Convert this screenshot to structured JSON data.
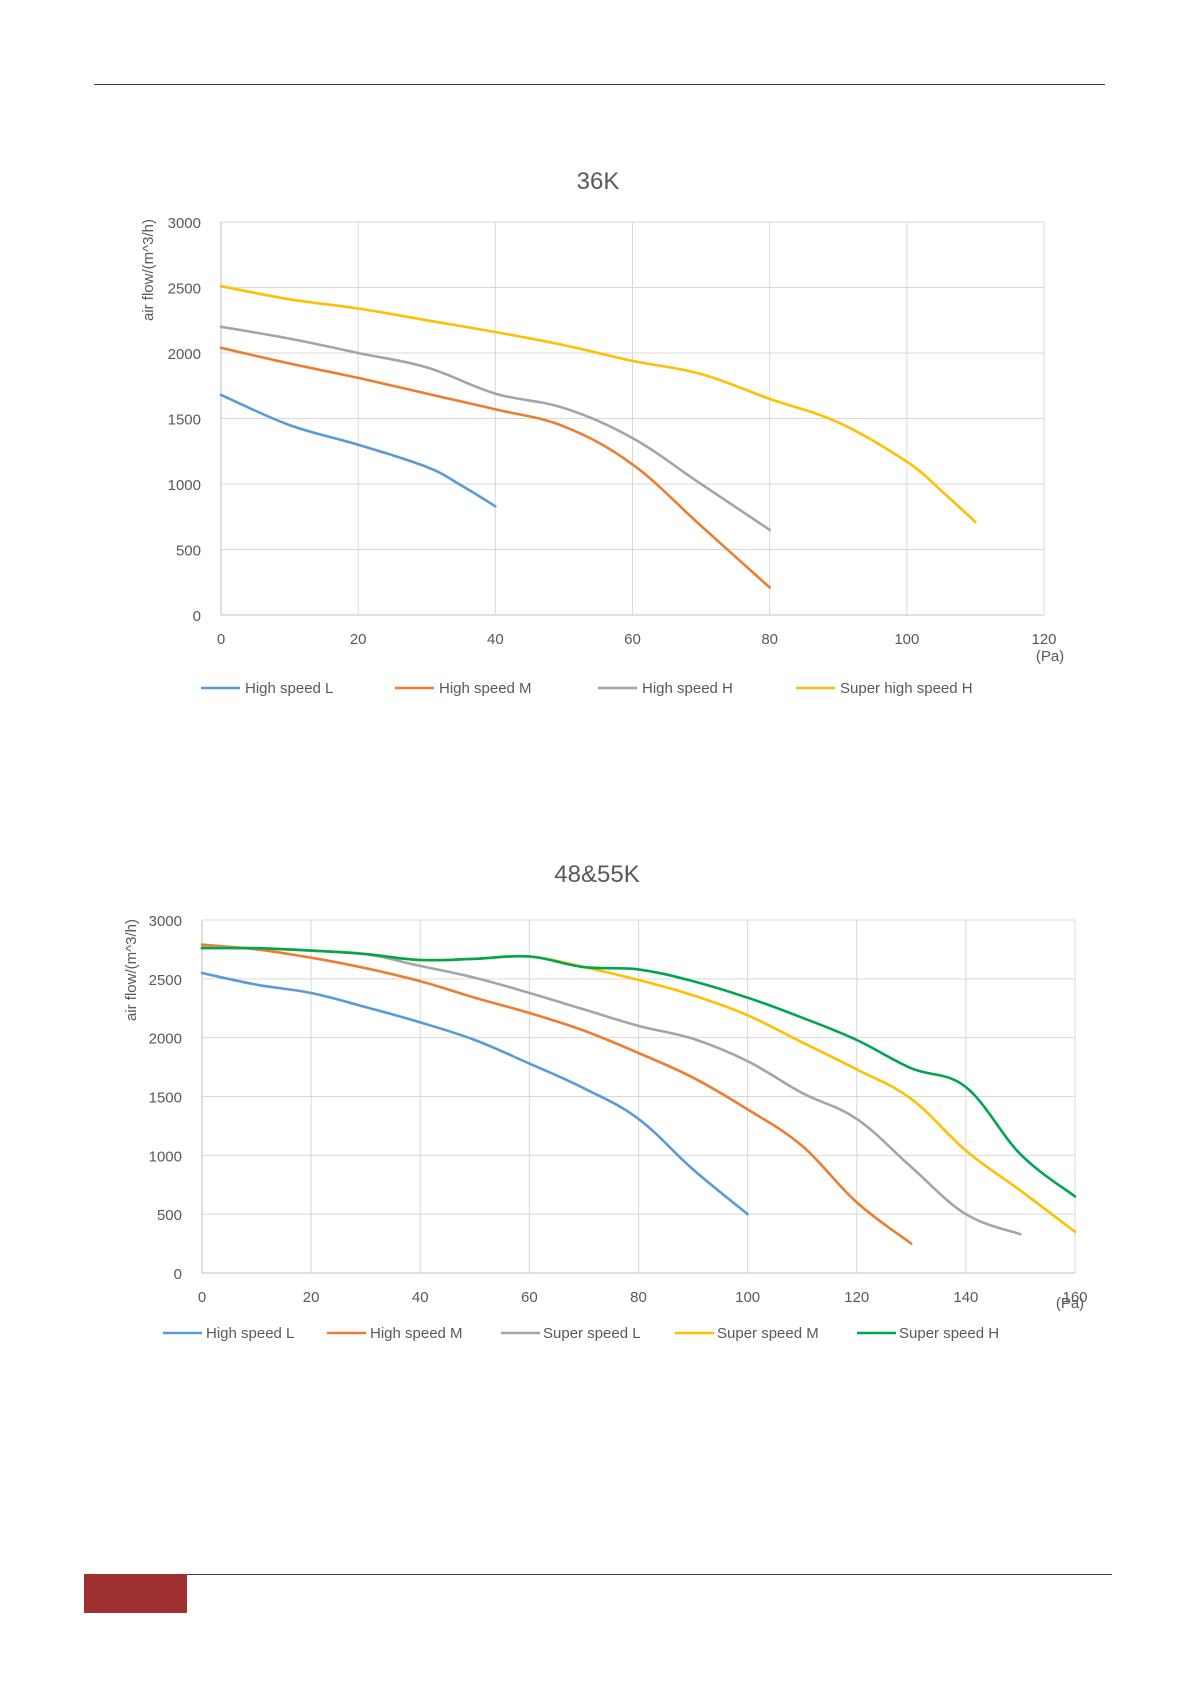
{
  "page": {
    "footer_color": "#9E3030"
  },
  "chart_data": [
    {
      "type": "line",
      "title": "36K",
      "ylabel": "air flow/(m^3/h)",
      "xlabel": "",
      "x_unit": "(Pa)",
      "xlim": [
        0,
        120
      ],
      "ylim": [
        0,
        3000
      ],
      "x_ticks": [
        0,
        20,
        40,
        60,
        80,
        100,
        120
      ],
      "y_ticks": [
        0,
        500,
        1000,
        1500,
        2000,
        2500,
        3000
      ],
      "grid": true,
      "legend_position": "bottom",
      "series": [
        {
          "name": "High speed L",
          "color": "#5B9BD5",
          "points": [
            [
              0,
              1680
            ],
            [
              10,
              1450
            ],
            [
              20,
              1300
            ],
            [
              30,
              1130
            ],
            [
              35,
              990
            ],
            [
              40,
              830
            ]
          ]
        },
        {
          "name": "High speed M",
          "color": "#ED7D31",
          "points": [
            [
              0,
              2040
            ],
            [
              10,
              1920
            ],
            [
              20,
              1810
            ],
            [
              30,
              1690
            ],
            [
              40,
              1570
            ],
            [
              50,
              1440
            ],
            [
              60,
              1150
            ],
            [
              70,
              680
            ],
            [
              80,
              210
            ]
          ]
        },
        {
          "name": "High speed H",
          "color": "#A5A5A5",
          "points": [
            [
              0,
              2200
            ],
            [
              10,
              2110
            ],
            [
              20,
              2000
            ],
            [
              30,
              1890
            ],
            [
              40,
              1690
            ],
            [
              50,
              1580
            ],
            [
              60,
              1350
            ],
            [
              70,
              1000
            ],
            [
              80,
              650
            ]
          ]
        },
        {
          "name": "Super high speed H",
          "color": "#FFC000",
          "points": [
            [
              0,
              2510
            ],
            [
              10,
              2410
            ],
            [
              20,
              2340
            ],
            [
              30,
              2250
            ],
            [
              40,
              2160
            ],
            [
              50,
              2060
            ],
            [
              60,
              1940
            ],
            [
              70,
              1840
            ],
            [
              80,
              1650
            ],
            [
              90,
              1470
            ],
            [
              100,
              1170
            ],
            [
              105,
              950
            ],
            [
              110,
              710
            ]
          ]
        }
      ]
    },
    {
      "type": "line",
      "title": "48&55K",
      "ylabel": "air flow/(m^3/h)",
      "xlabel": "",
      "x_unit": "(Pa)",
      "xlim": [
        0,
        160
      ],
      "ylim": [
        0,
        3000
      ],
      "x_ticks": [
        0,
        20,
        40,
        60,
        80,
        100,
        120,
        140,
        160
      ],
      "y_ticks": [
        0,
        500,
        1000,
        1500,
        2000,
        2500,
        3000
      ],
      "grid": true,
      "legend_position": "bottom",
      "series": [
        {
          "name": "High speed L",
          "color": "#5B9BD5",
          "points": [
            [
              0,
              2550
            ],
            [
              10,
              2450
            ],
            [
              20,
              2380
            ],
            [
              30,
              2260
            ],
            [
              40,
              2130
            ],
            [
              50,
              1980
            ],
            [
              60,
              1780
            ],
            [
              70,
              1570
            ],
            [
              80,
              1310
            ],
            [
              90,
              880
            ],
            [
              100,
              500
            ]
          ]
        },
        {
          "name": "High speed M",
          "color": "#ED7D31",
          "points": [
            [
              0,
              2790
            ],
            [
              10,
              2750
            ],
            [
              20,
              2680
            ],
            [
              30,
              2590
            ],
            [
              40,
              2480
            ],
            [
              50,
              2340
            ],
            [
              60,
              2210
            ],
            [
              70,
              2060
            ],
            [
              80,
              1870
            ],
            [
              90,
              1660
            ],
            [
              100,
              1390
            ],
            [
              110,
              1080
            ],
            [
              120,
              600
            ],
            [
              130,
              250
            ]
          ]
        },
        {
          "name": "Super speed L",
          "color": "#A5A5A5",
          "points": [
            [
              0,
              2770
            ],
            [
              10,
              2760
            ],
            [
              20,
              2740
            ],
            [
              30,
              2710
            ],
            [
              40,
              2610
            ],
            [
              50,
              2510
            ],
            [
              60,
              2380
            ],
            [
              70,
              2240
            ],
            [
              80,
              2100
            ],
            [
              90,
              1990
            ],
            [
              100,
              1800
            ],
            [
              110,
              1530
            ],
            [
              120,
              1310
            ],
            [
              130,
              900
            ],
            [
              140,
              500
            ],
            [
              150,
              330
            ]
          ]
        },
        {
          "name": "Super speed M",
          "color": "#FFC000",
          "points": [
            [
              0,
              2760
            ],
            [
              10,
              2760
            ],
            [
              20,
              2740
            ],
            [
              30,
              2710
            ],
            [
              40,
              2660
            ],
            [
              50,
              2670
            ],
            [
              60,
              2690
            ],
            [
              70,
              2600
            ],
            [
              80,
              2490
            ],
            [
              90,
              2360
            ],
            [
              100,
              2190
            ],
            [
              110,
              1960
            ],
            [
              120,
              1730
            ],
            [
              130,
              1480
            ],
            [
              140,
              1040
            ],
            [
              150,
              700
            ],
            [
              160,
              350
            ]
          ]
        },
        {
          "name": "Super speed H",
          "color": "#00A550",
          "points": [
            [
              0,
              2760
            ],
            [
              10,
              2760
            ],
            [
              20,
              2740
            ],
            [
              30,
              2710
            ],
            [
              40,
              2660
            ],
            [
              50,
              2670
            ],
            [
              60,
              2690
            ],
            [
              70,
              2600
            ],
            [
              80,
              2580
            ],
            [
              90,
              2480
            ],
            [
              100,
              2340
            ],
            [
              110,
              2170
            ],
            [
              120,
              1980
            ],
            [
              130,
              1740
            ],
            [
              140,
              1580
            ],
            [
              150,
              1010
            ],
            [
              160,
              650
            ]
          ]
        }
      ]
    }
  ]
}
